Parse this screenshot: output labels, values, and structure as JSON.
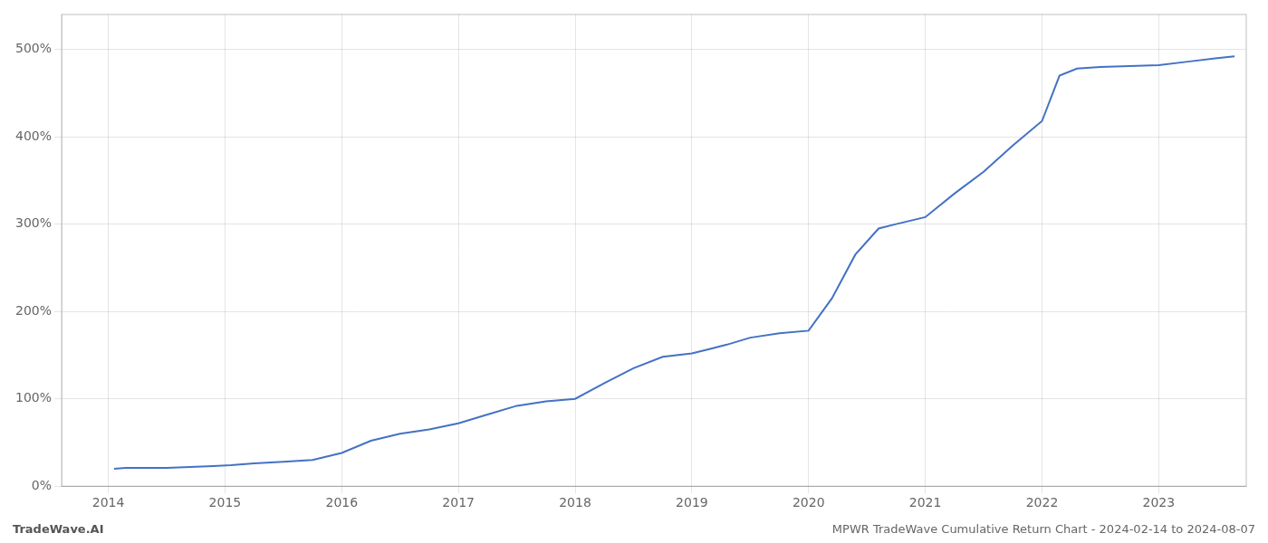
{
  "chart_data": {
    "type": "line",
    "title": "MPWR TradeWave Cumulative Return Chart - 2024-02-14 to 2024-08-07",
    "annotations": [
      "TradeWave.AI"
    ],
    "color": "#4472c4",
    "x": [
      2014.05,
      2014.15,
      2014.3,
      2014.5,
      2014.7,
      2014.9,
      2015.05,
      2015.25,
      2015.5,
      2015.75,
      2016.0,
      2016.25,
      2016.5,
      2016.75,
      2017.0,
      2017.25,
      2017.5,
      2017.75,
      2018.0,
      2018.25,
      2018.5,
      2018.75,
      2019.0,
      2019.15,
      2019.3,
      2019.5,
      2019.75,
      2020.0,
      2020.2,
      2020.4,
      2020.6,
      2020.75,
      2021.0,
      2021.25,
      2021.5,
      2021.75,
      2022.0,
      2022.15,
      2022.3,
      2022.5,
      2022.75,
      2023.0,
      2023.25,
      2023.5,
      2023.65
    ],
    "values": [
      20,
      21,
      21,
      21,
      22,
      23,
      24,
      26,
      28,
      30,
      38,
      52,
      60,
      65,
      72,
      82,
      92,
      97,
      100,
      118,
      135,
      148,
      152,
      157,
      162,
      170,
      175,
      178,
      215,
      265,
      295,
      300,
      308,
      335,
      360,
      390,
      418,
      470,
      478,
      480,
      481,
      482,
      486,
      490,
      492
    ],
    "xlim": [
      2013.6,
      2023.75
    ],
    "xticks": [
      2014,
      2015,
      2016,
      2017,
      2018,
      2019,
      2020,
      2021,
      2022,
      2023
    ],
    "ylim": [
      0,
      540
    ],
    "yticks": [
      {
        "value": 0,
        "label": "0%"
      },
      {
        "value": 100,
        "label": "100%"
      },
      {
        "value": 200,
        "label": "200%"
      },
      {
        "value": 300,
        "label": "300%"
      },
      {
        "value": 400,
        "label": "400%"
      },
      {
        "value": 500,
        "label": "500%"
      }
    ],
    "grid": true
  }
}
